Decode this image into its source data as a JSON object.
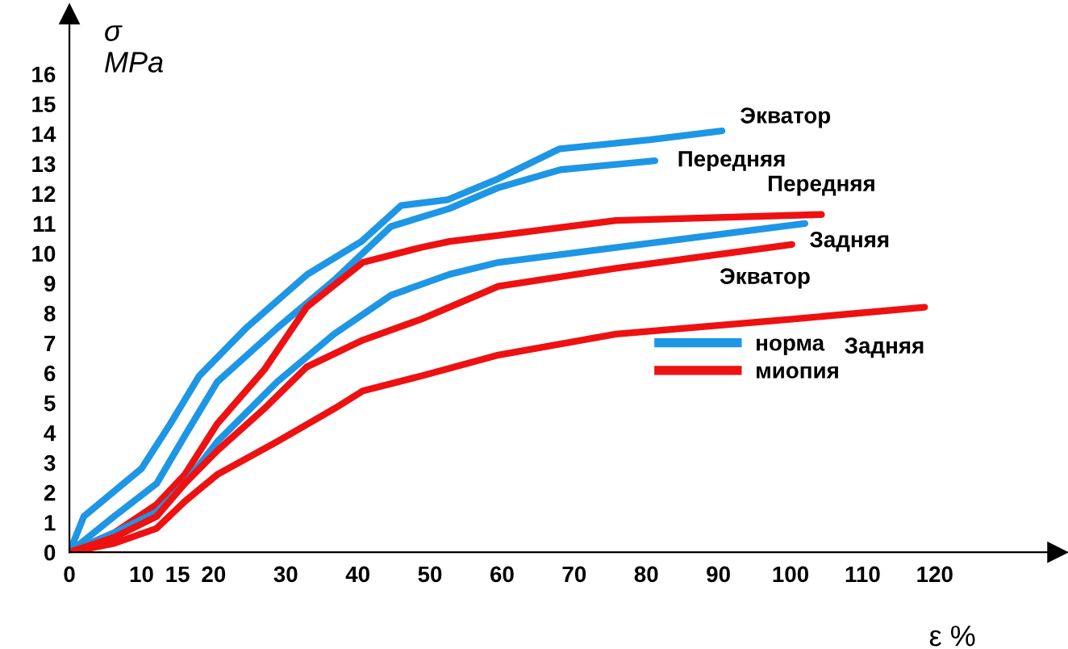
{
  "chart_data": {
    "type": "line",
    "ylabel": "σ\nMPa",
    "xlabel": "ε %",
    "xlim": [
      0,
      137
    ],
    "xticks": [
      0,
      10,
      15,
      20,
      30,
      40,
      50,
      60,
      70,
      80,
      90,
      100,
      110,
      120
    ],
    "ylim": [
      0,
      18
    ],
    "yticks": [
      0,
      1,
      2,
      3,
      4,
      5,
      6,
      7,
      8,
      9,
      10,
      11,
      12,
      13,
      14,
      15,
      16
    ],
    "grid": false,
    "legend": "center right",
    "line_style": "solid",
    "marker": "none",
    "series": [
      {
        "name": "норма",
        "color": "#1e96e6",
        "x": [
          0,
          2,
          10,
          14,
          18,
          24.5,
          33,
          40.5,
          46,
          52.5,
          59.5,
          68,
          80.5,
          90.5
        ],
        "values": [
          0,
          1.2,
          2.8,
          4.3,
          5.9,
          7.5,
          9.3,
          10.4,
          11.6,
          11.8,
          12.5,
          13.5,
          13.8,
          14.1
        ]
      },
      {
        "color": "#1e96e6",
        "x": [
          0,
          6.2,
          12.1,
          16,
          20.5,
          28.8,
          36.7,
          44.6,
          52.7,
          59.5,
          68.1,
          81.2
        ],
        "values": [
          0,
          1.2,
          2.3,
          3.9,
          5.7,
          7.5,
          9.1,
          10.9,
          11.5,
          12.2,
          12.8,
          13.1
        ]
      },
      {
        "name": "миопия",
        "color": "#ee1111",
        "x": [
          0,
          6.2,
          12.1,
          16,
          20.5,
          27,
          32.9,
          40.7,
          48.8,
          52.7,
          59.5,
          75.8,
          104.3
        ],
        "values": [
          0,
          0.65,
          1.6,
          2.6,
          4.3,
          6.1,
          8.2,
          9.7,
          10.2,
          10.4,
          10.6,
          11.1,
          11.3
        ]
      },
      {
        "color": "#1e96e6",
        "x": [
          0,
          6.2,
          12.1,
          16,
          20.5,
          28.8,
          36.7,
          44.6,
          52.7,
          59.5,
          75.8,
          102
        ],
        "values": [
          0,
          0.65,
          1.35,
          2.3,
          3.7,
          5.7,
          7.3,
          8.6,
          9.3,
          9.7,
          10.2,
          11.0
        ]
      },
      {
        "color": "#ee1111",
        "x": [
          0,
          6.2,
          12.1,
          16,
          20.5,
          27,
          32.9,
          40.7,
          48.8,
          59.5,
          75.8,
          100.2
        ],
        "values": [
          0,
          0.5,
          1.2,
          2.3,
          3.4,
          4.8,
          6.2,
          7.1,
          7.8,
          8.9,
          9.5,
          10.3
        ]
      },
      {
        "color": "#ee1111",
        "x": [
          0,
          6.2,
          12.1,
          16,
          20.5,
          28.8,
          36.7,
          40.7,
          48.8,
          59.5,
          75.8,
          100.2,
          118.6
        ],
        "values": [
          0,
          0.3,
          0.8,
          1.7,
          2.6,
          3.7,
          4.8,
          5.4,
          5.9,
          6.6,
          7.3,
          7.8,
          8.2
        ]
      }
    ],
    "annotations": [
      {
        "text": "Экватор",
        "x": 90.5,
        "y": 14.1
      },
      {
        "text": "Передняя",
        "x": 81.2,
        "y": 13.1
      },
      {
        "text": "Передняя",
        "x": 104.3,
        "y": 11.3
      },
      {
        "text": "Задняя",
        "x": 102,
        "y": 11.0
      },
      {
        "text": "Экватор",
        "x": 100.2,
        "y": 10.3
      },
      {
        "text": "Задняя",
        "x": 118.6,
        "y": 8.2
      }
    ]
  }
}
